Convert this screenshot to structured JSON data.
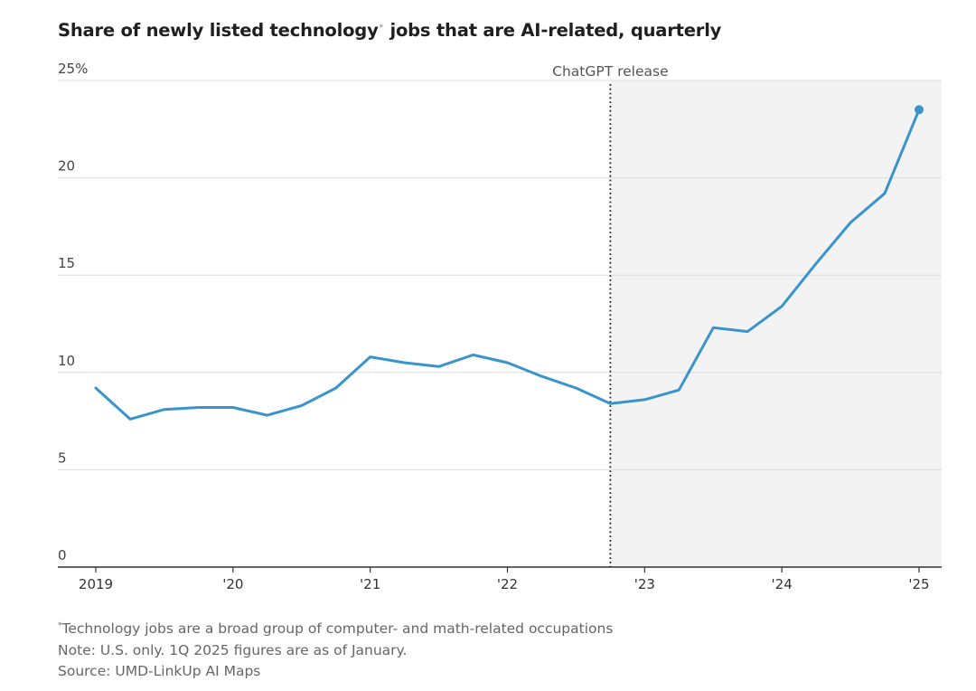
{
  "header": {
    "title_before": "Share of newly listed technology",
    "title_mark": "*",
    "title_after": " jobs that are AI-related, quarterly"
  },
  "notes": {
    "footnote_mark": "*",
    "footnote": "Technology jobs are a broad group of computer- and math-related occupations",
    "note": "Note: U.S. only. 1Q 2025 figures are as of January.",
    "source": "Source: UMD-LinkUp AI Maps"
  },
  "colors": {
    "line": "#3a94cc",
    "shade": "#f3f3f3",
    "grid": "#dcdcdc",
    "axis": "#333333"
  },
  "chart_data": {
    "type": "line",
    "title": "Share of newly listed technology* jobs that are AI-related, quarterly",
    "xlabel": "",
    "ylabel": "",
    "ylim": [
      0,
      25
    ],
    "xlim": [
      2019,
      2025.17
    ],
    "yticks": [
      {
        "value": 25,
        "label": "25%"
      },
      {
        "value": 20,
        "label": "20"
      },
      {
        "value": 15,
        "label": "15"
      },
      {
        "value": 10,
        "label": "10"
      },
      {
        "value": 5,
        "label": "5"
      },
      {
        "value": 0,
        "label": "0"
      }
    ],
    "xticks": [
      {
        "value": 2019,
        "label": "2019"
      },
      {
        "value": 2020,
        "label": "'20"
      },
      {
        "value": 2021,
        "label": "'21"
      },
      {
        "value": 2022,
        "label": "'22"
      },
      {
        "value": 2023,
        "label": "'23"
      },
      {
        "value": 2024,
        "label": "'24"
      },
      {
        "value": 2025,
        "label": "'25"
      }
    ],
    "grid": true,
    "annotation": {
      "label": "ChatGPT release",
      "x": 2022.75,
      "shaded_after": true
    },
    "series": [
      {
        "x": [
          2019,
          2019.25,
          2019.5,
          2019.75,
          2020,
          2020.25,
          2020.5,
          2020.75,
          2021,
          2021.25,
          2021.5,
          2021.75,
          2022,
          2022.25,
          2022.5,
          2022.75,
          2023,
          2023.25,
          2023.5,
          2023.75,
          2024,
          2024.25,
          2024.5,
          2024.75,
          2025
        ],
        "values": [
          9.2,
          7.6,
          8.1,
          8.2,
          8.2,
          7.8,
          8.3,
          9.2,
          10.8,
          10.5,
          10.3,
          10.9,
          10.5,
          9.8,
          9.2,
          8.4,
          8.6,
          9.1,
          12.3,
          12.1,
          13.4,
          15.6,
          17.7,
          19.2,
          23.5
        ]
      }
    ]
  }
}
